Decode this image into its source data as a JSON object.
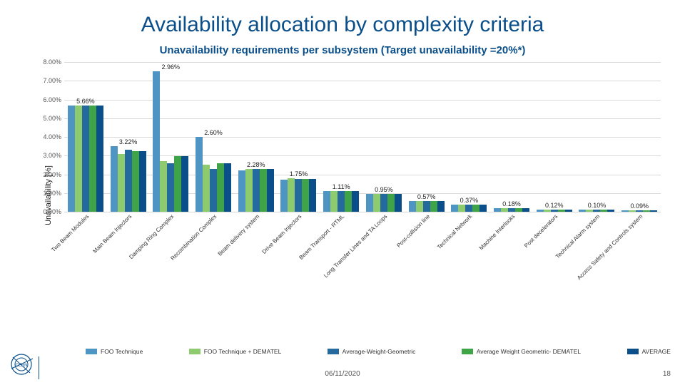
{
  "title": "Availability allocation by complexity criteria",
  "subtitle": "Unavailability requirements per subsystem (Target unavailability =20%*)",
  "ylabel": "Unavailability [%]",
  "date": "06/11/2020",
  "slide_number": "18",
  "chart": {
    "type": "bar",
    "ylim": [
      0,
      8
    ],
    "ytick_step": 1,
    "ytick_labels": [
      "0.00%",
      "1.00%",
      "2.00%",
      "3.00%",
      "4.00%",
      "5.00%",
      "6.00%",
      "7.00%",
      "8.00%"
    ],
    "background_color": "#ffffff",
    "grid_color": "#d9d9d9",
    "series_colors": [
      "#4f95c4",
      "#8ecb6e",
      "#246a9e",
      "#3ea447",
      "#0a4f8a"
    ],
    "series_names": [
      "FOO Technique",
      "FOO Technique + DEMATEL",
      "Average-Weight-Geometric",
      "Average Weight Geometric- DEMATEL",
      "AVERAGE"
    ],
    "categories": [
      "Two Beam Modules",
      "Main Beam Injectors",
      "Damping Ring Complex",
      "Recombination Complex",
      "Beam delivery system",
      "Drive Beam Injectors",
      "Beam Transport - RTML",
      "Long Transfer Lines and TA Loops",
      "Post-collision line",
      "Technical Network",
      "Machine Interlocks",
      "Post decelerators",
      "Technical Alarm system",
      "Access Safety and Controls system"
    ],
    "group_labels": [
      "5.66%",
      "3.22%",
      "2.96%",
      "2.60%",
      "2.28%",
      "1.75%",
      "1.11%",
      "0.95%",
      "0.57%",
      "0.37%",
      "0.18%",
      "0.12%",
      "0.10%",
      "0.09%"
    ],
    "data": [
      [
        5.66,
        5.66,
        5.66,
        5.66,
        5.66
      ],
      [
        3.5,
        3.1,
        3.3,
        3.22,
        3.22
      ],
      [
        7.5,
        2.7,
        2.6,
        2.96,
        2.96
      ],
      [
        4.0,
        2.5,
        2.3,
        2.6,
        2.6
      ],
      [
        2.2,
        2.3,
        2.28,
        2.28,
        2.28
      ],
      [
        1.7,
        1.8,
        1.75,
        1.75,
        1.75
      ],
      [
        1.1,
        1.11,
        1.11,
        1.11,
        1.11
      ],
      [
        0.95,
        0.95,
        0.95,
        0.95,
        0.95
      ],
      [
        0.57,
        0.57,
        0.57,
        0.57,
        0.57
      ],
      [
        0.37,
        0.37,
        0.37,
        0.37,
        0.37
      ],
      [
        0.18,
        0.18,
        0.18,
        0.18,
        0.18
      ],
      [
        0.12,
        0.12,
        0.12,
        0.12,
        0.12
      ],
      [
        0.1,
        0.1,
        0.1,
        0.1,
        0.1
      ],
      [
        0.09,
        0.09,
        0.09,
        0.09,
        0.09
      ]
    ],
    "label_fontsize": 9,
    "title_fontsize": 30,
    "bar_width": 0.18
  }
}
